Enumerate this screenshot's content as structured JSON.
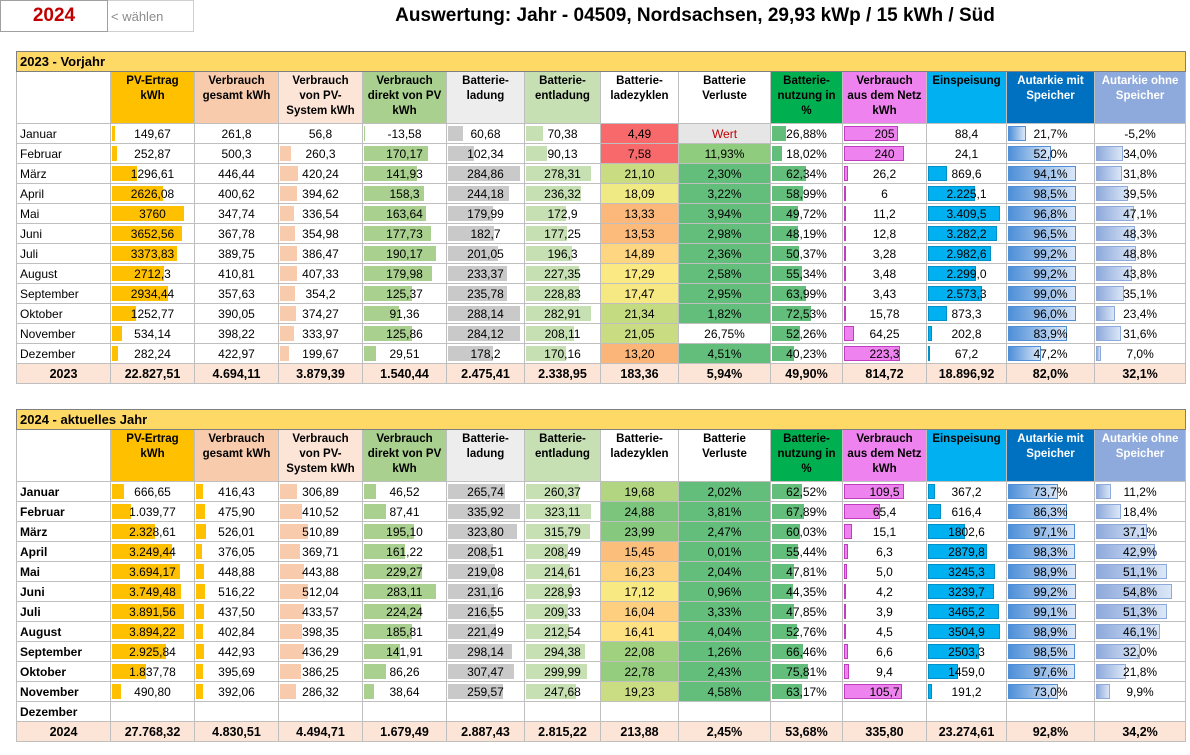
{
  "header": {
    "year": "2024",
    "choose_label": "< wählen",
    "title": "Auswertung: Jahr - 04509, Nordsachsen, 29,93 kWp / 15 kWh / Süd"
  },
  "columns": [
    "PV-Ertrag kWh",
    "Verbrauch gesamt  kWh",
    "Verbrauch von PV-System kWh",
    "Verbrauch direkt von PV kWh",
    "Batterie-ladung",
    "Batterie-entladung",
    "Batterie-ladezyklen",
    "Batterie Verluste",
    "Batterie-nutzung in %",
    "Verbrauch aus dem Netz kWh",
    "Einspeisung",
    "Autarkie mit Speicher",
    "Autarkie ohne Speicher"
  ],
  "colors": {
    "pv": "#ffc000",
    "verbrauch": "#f8cbad",
    "vonpv": "#fce4d6",
    "direkt": "#a9d08e",
    "ladung": "#d0cece",
    "entladung": "#c6e0b4",
    "nutzung": "#63be7b",
    "netz": "#ee82ee",
    "einspeisung": "#00b0f0",
    "autarkie_mit": "#0070c0",
    "autarkie_ohne": "#8ea9db"
  },
  "sections": [
    {
      "title": "2023 - Vorjahr",
      "rows": [
        [
          "Januar",
          "149,67",
          "261,8",
          "56,8",
          "-13,58",
          "60,68",
          "70,38",
          "4,49",
          "Wert",
          "26,88%",
          "205",
          "88,4",
          "21,7%",
          "-5,2%"
        ],
        [
          "Februar",
          "252,87",
          "500,3",
          "260,3",
          "170,17",
          "102,34",
          "90,13",
          "7,58",
          "11,93%",
          "18,02%",
          "240",
          "24,1",
          "52,0%",
          "34,0%"
        ],
        [
          "März",
          "1296,61",
          "446,44",
          "420,24",
          "141,93",
          "284,86",
          "278,31",
          "21,10",
          "2,30%",
          "62,34%",
          "26,2",
          "869,6",
          "94,1%",
          "31,8%"
        ],
        [
          "April",
          "2626,08",
          "400,62",
          "394,62",
          "158,3",
          "244,18",
          "236,32",
          "18,09",
          "3,22%",
          "58,99%",
          "6",
          "2.225,1",
          "98,5%",
          "39,5%"
        ],
        [
          "Mai",
          "3760",
          "347,74",
          "336,54",
          "163,64",
          "179,99",
          "172,9",
          "13,33",
          "3,94%",
          "49,72%",
          "11,2",
          "3.409,5",
          "96,8%",
          "47,1%"
        ],
        [
          "Juni",
          "3652,56",
          "367,78",
          "354,98",
          "177,73",
          "182,7",
          "177,25",
          "13,53",
          "2,98%",
          "48,19%",
          "12,8",
          "3.282,2",
          "96,5%",
          "48,3%"
        ],
        [
          "Juli",
          "3373,83",
          "389,75",
          "386,47",
          "190,17",
          "201,05",
          "196,3",
          "14,89",
          "2,36%",
          "50,37%",
          "3,28",
          "2.982,6",
          "99,2%",
          "48,8%"
        ],
        [
          "August",
          "2712,3",
          "410,81",
          "407,33",
          "179,98",
          "233,37",
          "227,35",
          "17,29",
          "2,58%",
          "55,34%",
          "3,48",
          "2.299,0",
          "99,2%",
          "43,8%"
        ],
        [
          "September",
          "2934,44",
          "357,63",
          "354,2",
          "125,37",
          "235,78",
          "228,83",
          "17,47",
          "2,95%",
          "63,99%",
          "3,43",
          "2.573,3",
          "99,0%",
          "35,1%"
        ],
        [
          "Oktober",
          "1252,77",
          "390,05",
          "374,27",
          "91,36",
          "288,14",
          "282,91",
          "21,34",
          "1,82%",
          "72,53%",
          "15,78",
          "873,3",
          "96,0%",
          "23,4%"
        ],
        [
          "November",
          "534,14",
          "398,22",
          "333,97",
          "125,86",
          "284,12",
          "208,11",
          "21,05",
          "26,75%",
          "52,26%",
          "64,25",
          "202,8",
          "83,9%",
          "31,6%"
        ],
        [
          "Dezember",
          "282,24",
          "422,97",
          "199,67",
          "29,51",
          "178,2",
          "170,16",
          "13,20",
          "4,51%",
          "40,23%",
          "223,3",
          "67,2",
          "47,2%",
          "7,0%"
        ]
      ],
      "total": [
        "2023",
        "22.827,51",
        "4.694,11",
        "3.879,39",
        "1.540,44",
        "2.475,41",
        "2.338,95",
        "183,36",
        "5,94%",
        "49,90%",
        "814,72",
        "18.896,92",
        "82,0%",
        "32,1%"
      ],
      "bars": [
        [
          0.04,
          0,
          0,
          0.02,
          0.21,
          0.25,
          0.14,
          0.27,
          0.18,
          0.9,
          0,
          0.26,
          0
        ],
        [
          0.07,
          0,
          0.15,
          0.89,
          0.36,
          0.32,
          0.23,
          0,
          0.12,
          1.0,
          0,
          0.63,
          0.36
        ],
        [
          0.35,
          0,
          0.25,
          0.74,
          1.0,
          0.98,
          0.64,
          0,
          0.42,
          0.06,
          0.26,
          1.0,
          0.34
        ],
        [
          0.71,
          0,
          0.23,
          0.83,
          0.85,
          0.83,
          0.55,
          0,
          0.39,
          0.01,
          0.65,
          1.0,
          0.42
        ],
        [
          1.0,
          0,
          0.2,
          0.86,
          0.63,
          0.61,
          0.4,
          0,
          0.33,
          0.03,
          1.0,
          1.0,
          0.5
        ],
        [
          0.97,
          0,
          0.21,
          0.93,
          0.64,
          0.62,
          0.41,
          0,
          0.32,
          0.03,
          0.96,
          1.0,
          0.51
        ],
        [
          0.9,
          0,
          0.23,
          1.0,
          0.7,
          0.69,
          0.45,
          0,
          0.34,
          0.01,
          0.87,
          1.0,
          0.52
        ],
        [
          0.72,
          0,
          0.24,
          0.94,
          0.82,
          0.8,
          0.52,
          0,
          0.37,
          0.01,
          0.67,
          1.0,
          0.47
        ],
        [
          0.78,
          0,
          0.21,
          0.66,
          0.82,
          0.8,
          0.53,
          0,
          0.43,
          0.01,
          0.75,
          1.0,
          0.37
        ],
        [
          0.33,
          0,
          0.22,
          0.48,
          1.0,
          0.99,
          0.64,
          0,
          0.49,
          0.04,
          0.26,
          1.0,
          0.25
        ],
        [
          0.14,
          0,
          0.2,
          0.66,
          1.0,
          0.73,
          0.64,
          0,
          0.35,
          0.16,
          0.06,
          0.87,
          0.33
        ],
        [
          0.08,
          0,
          0.12,
          0.16,
          0.62,
          0.6,
          0.4,
          0,
          0.27,
          0.93,
          0.02,
          0.49,
          0.07
        ]
      ],
      "cellbg": [
        [
          "",
          "",
          "",
          "",
          "",
          "",
          "#f8696b",
          "#e7e6e6",
          "",
          "",
          "",
          "",
          ""
        ],
        [
          "",
          "",
          "",
          "",
          "",
          "",
          "#f8696b",
          "#8fcc7e",
          "",
          "",
          "",
          "",
          ""
        ],
        [
          "",
          "",
          "",
          "",
          "",
          "",
          "#c9dc81",
          "#63be7b",
          "",
          "",
          "",
          "",
          ""
        ],
        [
          "",
          "",
          "",
          "",
          "",
          "",
          "#f0ea84",
          "#63be7b",
          "",
          "",
          "",
          "",
          ""
        ],
        [
          "",
          "",
          "",
          "",
          "",
          "",
          "#fcb87a",
          "#63be7b",
          "",
          "",
          "",
          "",
          ""
        ],
        [
          "",
          "",
          "",
          "",
          "",
          "",
          "#fcbb7b",
          "#63be7b",
          "",
          "",
          "",
          "",
          ""
        ],
        [
          "",
          "",
          "",
          "",
          "",
          "",
          "#fed580",
          "#63be7b",
          "",
          "",
          "",
          "",
          ""
        ],
        [
          "",
          "",
          "",
          "",
          "",
          "",
          "#fbea84",
          "#63be7b",
          "",
          "",
          "",
          "",
          ""
        ],
        [
          "",
          "",
          "",
          "",
          "",
          "",
          "#f6e984",
          "#63be7b",
          "",
          "",
          "",
          "",
          ""
        ],
        [
          "",
          "",
          "",
          "",
          "",
          "",
          "#c4db81",
          "#63be7b",
          "",
          "",
          "",
          "",
          ""
        ],
        [
          "",
          "",
          "",
          "",
          "",
          "",
          "#c9dc81",
          "#ffffff",
          "",
          "",
          "",
          "",
          ""
        ],
        [
          "",
          "",
          "",
          "",
          "",
          "",
          "#fbb579",
          "#63be7b",
          "",
          "",
          "",
          "",
          ""
        ]
      ]
    },
    {
      "title": "2024 - aktuelles Jahr",
      "rows": [
        [
          "Januar",
          "666,65",
          "416,43",
          "306,89",
          "46,52",
          "265,74",
          "260,37",
          "19,68",
          "2,02%",
          "62,52%",
          "109,5",
          "367,2",
          "73,7%",
          "11,2%"
        ],
        [
          "Februar",
          "1.039,77",
          "475,90",
          "410,52",
          "87,41",
          "335,92",
          "323,11",
          "24,88",
          "3,81%",
          "67,89%",
          "65,4",
          "616,4",
          "86,3%",
          "18,4%"
        ],
        [
          "März",
          "2.328,61",
          "526,01",
          "510,89",
          "195,10",
          "323,80",
          "315,79",
          "23,99",
          "2,47%",
          "60,03%",
          "15,1",
          "1802,6",
          "97,1%",
          "37,1%"
        ],
        [
          "April",
          "3.249,44",
          "376,05",
          "369,71",
          "161,22",
          "208,51",
          "208,49",
          "15,45",
          "0,01%",
          "55,44%",
          "6,3",
          "2879,8",
          "98,3%",
          "42,9%"
        ],
        [
          "Mai",
          "3.694,17",
          "448,88",
          "443,88",
          "229,27",
          "219,08",
          "214,61",
          "16,23",
          "2,04%",
          "47,81%",
          "5,0",
          "3245,3",
          "98,9%",
          "51,1%"
        ],
        [
          "Juni",
          "3.749,48",
          "516,22",
          "512,04",
          "283,11",
          "231,16",
          "228,93",
          "17,12",
          "0,96%",
          "44,35%",
          "4,2",
          "3239,7",
          "99,2%",
          "54,8%"
        ],
        [
          "Juli",
          "3.891,56",
          "437,50",
          "433,57",
          "224,24",
          "216,55",
          "209,33",
          "16,04",
          "3,33%",
          "47,85%",
          "3,9",
          "3465,2",
          "99,1%",
          "51,3%"
        ],
        [
          "August",
          "3.894,22",
          "402,84",
          "398,35",
          "185,81",
          "221,49",
          "212,54",
          "16,41",
          "4,04%",
          "52,76%",
          "4,5",
          "3504,9",
          "98,9%",
          "46,1%"
        ],
        [
          "September",
          "2.925,84",
          "442,93",
          "436,29",
          "141,91",
          "298,14",
          "294,38",
          "22,08",
          "1,26%",
          "66,46%",
          "6,6",
          "2503,3",
          "98,5%",
          "32,0%"
        ],
        [
          "Oktober",
          "1.837,78",
          "395,69",
          "386,25",
          "86,26",
          "307,47",
          "299,99",
          "22,78",
          "2,43%",
          "75,81%",
          "9,4",
          "1459,0",
          "97,6%",
          "21,8%"
        ],
        [
          "November",
          "490,80",
          "392,06",
          "286,32",
          "38,64",
          "259,57",
          "247,68",
          "19,23",
          "4,58%",
          "63,17%",
          "105,7",
          "191,2",
          "73,0%",
          "9,9%"
        ],
        [
          "Dezember",
          "",
          "",
          "",
          "",
          "",
          "",
          "",
          "",
          "",
          "",
          "",
          "",
          ""
        ]
      ],
      "total": [
        "2024",
        "27.768,32",
        "4.830,51",
        "4.494,71",
        "1.679,49",
        "2.887,43",
        "2.815,22",
        "213,88",
        "2,45%",
        "53,68%",
        "335,80",
        "23.274,61",
        "92,8%",
        "34,2%"
      ],
      "bars": [
        [
          0.17,
          0.1,
          0.23,
          0.16,
          0.79,
          0.8,
          0.6,
          0,
          0.37,
          1.0,
          0.1,
          0.74,
          0.2
        ],
        [
          0.27,
          0.12,
          0.31,
          0.31,
          1.0,
          0.99,
          0.76,
          0,
          0.4,
          0.6,
          0.18,
          0.87,
          0.33
        ],
        [
          0.6,
          0.14,
          0.39,
          0.69,
          0.96,
          0.97,
          0.73,
          0,
          0.35,
          0.14,
          0.51,
          0.98,
          0.67
        ],
        [
          0.83,
          0.09,
          0.28,
          0.57,
          0.62,
          0.64,
          0.47,
          0,
          0.33,
          0.06,
          0.82,
          0.99,
          0.78
        ],
        [
          0.95,
          0.11,
          0.34,
          0.81,
          0.65,
          0.66,
          0.49,
          0,
          0.28,
          0.05,
          0.93,
          1.0,
          0.93
        ],
        [
          0.96,
          0.13,
          0.39,
          1.0,
          0.69,
          0.7,
          0.52,
          0,
          0.26,
          0.04,
          0.92,
          1.0,
          1.0
        ],
        [
          1.0,
          0.11,
          0.33,
          0.79,
          0.64,
          0.64,
          0.49,
          0,
          0.28,
          0.04,
          0.99,
          1.0,
          0.94
        ],
        [
          1.0,
          0.1,
          0.3,
          0.66,
          0.66,
          0.65,
          0.5,
          0,
          0.31,
          0.04,
          1.0,
          1.0,
          0.84
        ],
        [
          0.75,
          0.11,
          0.33,
          0.5,
          0.89,
          0.9,
          0.67,
          0,
          0.39,
          0.06,
          0.71,
          0.99,
          0.58
        ],
        [
          0.47,
          0.1,
          0.29,
          0.3,
          0.92,
          0.92,
          0.69,
          0,
          0.45,
          0.09,
          0.42,
          0.99,
          0.4
        ],
        [
          0.13,
          0.1,
          0.22,
          0.14,
          0.77,
          0.76,
          0.58,
          0,
          0.37,
          0.97,
          0.05,
          0.74,
          0.18
        ],
        [
          0,
          0,
          0,
          0,
          0,
          0,
          0,
          0,
          0,
          0,
          0,
          0,
          0
        ]
      ],
      "cellbg": [
        [
          "",
          "",
          "",
          "",
          "",
          "",
          "#b1d580",
          "#63be7b",
          "",
          "",
          "",
          "",
          ""
        ],
        [
          "",
          "",
          "",
          "",
          "",
          "",
          "#7cc57d",
          "#63be7b",
          "",
          "",
          "",
          "",
          ""
        ],
        [
          "",
          "",
          "",
          "",
          "",
          "",
          "#86c87d",
          "#63be7b",
          "",
          "",
          "",
          "",
          ""
        ],
        [
          "",
          "",
          "",
          "",
          "",
          "",
          "#fcbe7b",
          "#63be7b",
          "",
          "",
          "",
          "",
          ""
        ],
        [
          "",
          "",
          "",
          "",
          "",
          "",
          "#fed380",
          "#63be7b",
          "",
          "",
          "",
          "",
          ""
        ],
        [
          "",
          "",
          "",
          "",
          "",
          "",
          "#f9e983",
          "#63be7b",
          "",
          "",
          "",
          "",
          ""
        ],
        [
          "",
          "",
          "",
          "",
          "",
          "",
          "#fecf7f",
          "#63be7b",
          "",
          "",
          "",
          "",
          ""
        ],
        [
          "",
          "",
          "",
          "",
          "",
          "",
          "#fee182",
          "#63be7b",
          "",
          "",
          "",
          "",
          ""
        ],
        [
          "",
          "",
          "",
          "",
          "",
          "",
          "#a0d17f",
          "#63be7b",
          "",
          "",
          "",
          "",
          ""
        ],
        [
          "",
          "",
          "",
          "",
          "",
          "",
          "#94cd7e",
          "#63be7b",
          "",
          "",
          "",
          "",
          ""
        ],
        [
          "",
          "",
          "",
          "",
          "",
          "",
          "#cadd82",
          "#63be7b",
          "",
          "",
          "",
          "",
          ""
        ],
        [
          "",
          "",
          "",
          "",
          "",
          "",
          "",
          "#ffffff",
          "",
          "",
          "",
          "",
          ""
        ]
      ]
    }
  ]
}
